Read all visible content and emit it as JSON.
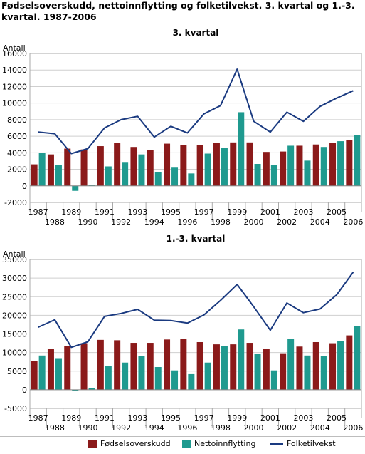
{
  "title": "Fødselsoverskudd, nettoinnflytting og folketilvekst. 3. kvartal og 1.-3. kvartal. 1987-2006",
  "colors": {
    "fodselsoverskudd": "#8b1a1a",
    "nettoinnflytting": "#1f9a8f",
    "folketilvekst": "#1a3a80"
  },
  "legend": [
    "Fødselsoverskudd",
    "Nettoinnflytting",
    "Folketilvekst"
  ],
  "chart_data": [
    {
      "type": "bar",
      "title": "3. kvartal",
      "ylabel": "Antall",
      "xlabel": "",
      "ylim": [
        -2000,
        16000
      ],
      "yticks": [
        -2000,
        0,
        2000,
        4000,
        6000,
        8000,
        10000,
        12000,
        14000,
        16000
      ],
      "grid": true,
      "legend_position": "bottom",
      "categories": [
        "1987",
        "1988",
        "1989",
        "1990",
        "1991",
        "1992",
        "1993",
        "1994",
        "1995",
        "1996",
        "1997",
        "1998",
        "1999",
        "2000",
        "2001",
        "2002",
        "2003",
        "2004",
        "2005",
        "2006"
      ],
      "series": [
        {
          "name": "Fødselsoverskudd",
          "kind": "bar",
          "values": [
            2600,
            3800,
            4500,
            4400,
            4800,
            5200,
            4700,
            4300,
            5100,
            4900,
            4950,
            5200,
            5250,
            5250,
            4100,
            4150,
            4850,
            5000,
            5200,
            5550
          ]
        },
        {
          "name": "Nettoinnflytting",
          "kind": "bar",
          "values": [
            4000,
            2500,
            -600,
            150,
            2350,
            2800,
            3800,
            1700,
            2200,
            1500,
            3900,
            4600,
            8900,
            2650,
            2550,
            4850,
            3050,
            4700,
            5400,
            6100
          ]
        },
        {
          "name": "Folketilvekst",
          "kind": "line",
          "values": [
            6500,
            6300,
            3900,
            4500,
            7000,
            8000,
            8400,
            5900,
            7200,
            6400,
            8700,
            9700,
            14100,
            7800,
            6500,
            8900,
            7800,
            9600,
            10600,
            11500
          ]
        }
      ]
    },
    {
      "type": "bar",
      "title": "1.-3. kvartal",
      "ylabel": "Antall",
      "xlabel": "",
      "ylim": [
        -5000,
        35000
      ],
      "yticks": [
        -5000,
        0,
        5000,
        10000,
        15000,
        20000,
        25000,
        30000,
        35000
      ],
      "grid": true,
      "legend_position": "bottom",
      "categories": [
        "1987",
        "1988",
        "1989",
        "1990",
        "1991",
        "1992",
        "1993",
        "1994",
        "1995",
        "1996",
        "1997",
        "1998",
        "1999",
        "2000",
        "2001",
        "2002",
        "2003",
        "2004",
        "2005",
        "2006"
      ],
      "series": [
        {
          "name": "Fødselsoverskudd",
          "kind": "bar",
          "values": [
            7700,
            10900,
            11700,
            12500,
            13400,
            13300,
            12600,
            12600,
            13500,
            13600,
            12800,
            12200,
            12200,
            12600,
            10900,
            9800,
            11600,
            12800,
            12500,
            14600
          ]
        },
        {
          "name": "Nettoinnflytting",
          "kind": "bar",
          "values": [
            9200,
            8300,
            -400,
            500,
            6300,
            7300,
            9100,
            6100,
            5200,
            4200,
            7300,
            11800,
            16200,
            9700,
            5200,
            13600,
            9200,
            9000,
            13000,
            17100
          ]
        },
        {
          "name": "Folketilvekst",
          "kind": "line",
          "values": [
            16800,
            18800,
            11400,
            12900,
            19700,
            20500,
            21600,
            18700,
            18600,
            17900,
            20100,
            24000,
            28300,
            22300,
            16000,
            23300,
            20700,
            21700,
            25500,
            31600
          ]
        }
      ]
    }
  ]
}
